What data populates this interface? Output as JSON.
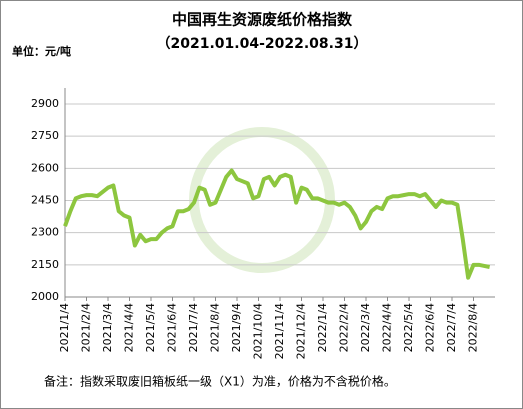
{
  "chart_data": {
    "type": "line",
    "title": "中国再生资源废纸价格指数",
    "subtitle": "（2021.01.04-2022.08.31）",
    "unit_label": "单位：元/吨",
    "note": "备注：指数采取废旧箱板纸一级（X1）为准，价格为不含税价格。",
    "categories": [
      "2021/1/4",
      null,
      null,
      null,
      "2021/2/4",
      null,
      null,
      null,
      "2021/3/4",
      null,
      null,
      null,
      "2021/4/4",
      null,
      null,
      null,
      "2021/5/4",
      null,
      null,
      null,
      "2021/6/4",
      null,
      null,
      null,
      "2021/7/4",
      null,
      null,
      null,
      "2021/8/4",
      null,
      null,
      null,
      "2021/9/4",
      null,
      null,
      null,
      "2021/10/4",
      null,
      null,
      null,
      "2021/11/4",
      null,
      null,
      null,
      "2021/12/4",
      null,
      null,
      null,
      "2022/1/4",
      null,
      null,
      null,
      "2022/2/4",
      null,
      null,
      null,
      "2022/3/4",
      null,
      null,
      null,
      "2022/4/4",
      null,
      null,
      null,
      "2022/5/4",
      null,
      null,
      null,
      "2022/6/4",
      null,
      null,
      null,
      "2022/7/4",
      null,
      null,
      null,
      "2022/8/4",
      null,
      null,
      null
    ],
    "series": [
      {
        "name": "废纸价格指数",
        "color": "#8dc63f",
        "values": [
          2330,
          2400,
          2460,
          2470,
          2475,
          2475,
          2470,
          2490,
          2510,
          2520,
          2400,
          2380,
          2370,
          2240,
          2290,
          2260,
          2270,
          2270,
          2300,
          2320,
          2330,
          2400,
          2400,
          2410,
          2440,
          2510,
          2500,
          2430,
          2440,
          2500,
          2560,
          2590,
          2550,
          2540,
          2530,
          2460,
          2470,
          2550,
          2560,
          2520,
          2560,
          2570,
          2560,
          2440,
          2510,
          2500,
          2460,
          2460,
          2450,
          2440,
          2440,
          2430,
          2440,
          2420,
          2380,
          2320,
          2350,
          2400,
          2420,
          2410,
          2460,
          2470,
          2470,
          2475,
          2480,
          2480,
          2470,
          2480,
          2450,
          2420,
          2450,
          2440,
          2440,
          2430,
          2270,
          2090,
          2150,
          2150,
          2145,
          2140
        ]
      }
    ],
    "ylim": [
      2000,
      2900
    ],
    "yticks": [
      2000,
      2150,
      2300,
      2450,
      2600,
      2750,
      2900
    ],
    "grid": true
  }
}
